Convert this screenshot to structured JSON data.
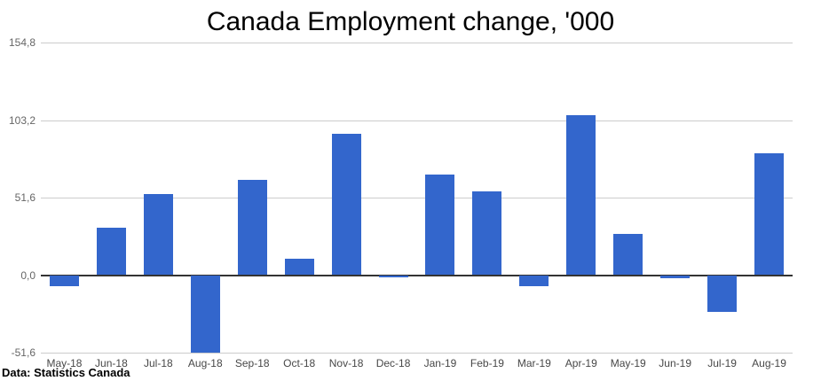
{
  "title": "Canada Employment change, '000",
  "source_note": "Data: Statistics Canada",
  "colors": {
    "bar": "#3366cc",
    "gridline": "#cccccc",
    "zero_line": "#333333",
    "y_tick_label": "#666666",
    "x_tick_label": "#474747",
    "title": "#000000",
    "background": "#ffffff"
  },
  "chart_data": {
    "type": "bar",
    "title": "Canada Employment change, '000",
    "xlabel": "",
    "ylabel": "",
    "legend": "none",
    "grid": true,
    "ylim": [
      -51.6,
      154.8
    ],
    "y_tick_interval": 51.6,
    "decimal_separator": ",",
    "yticks": [
      {
        "label": "154,8",
        "value": 154.8
      },
      {
        "label": "103,2",
        "value": 103.2
      },
      {
        "label": "51,6",
        "value": 51.6
      },
      {
        "label": "0,0",
        "value": 0
      },
      {
        "label": "-51,6",
        "value": -51.6
      }
    ],
    "categories": [
      "May-18",
      "Jun-18",
      "Jul-18",
      "Aug-18",
      "Sep-18",
      "Oct-18",
      "Nov-18",
      "Dec-18",
      "Jan-19",
      "Feb-19",
      "Mar-19",
      "Apr-19",
      "May-19",
      "Jun-19",
      "Jul-19",
      "Aug-19"
    ],
    "values": [
      -7.5,
      31.8,
      54.1,
      -51.6,
      63.3,
      11.2,
      94.1,
      -1.5,
      66.8,
      55.9,
      -7.2,
      106.5,
      27.7,
      -2.2,
      -24.2,
      81.1
    ],
    "series_name": "Employment change, '000"
  }
}
